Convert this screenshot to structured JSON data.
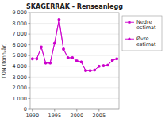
{
  "chart_data": {
    "type": "line",
    "title": "SKAGERRAK - Renseanlegg",
    "y_label": "TON (tonn/år)",
    "x": [
      1990,
      1991,
      1992,
      1993,
      1994,
      1995,
      1996,
      1997,
      1998,
      1999,
      2000,
      2001,
      2002,
      2003,
      2004,
      2005,
      2006,
      2007,
      2008,
      2009
    ],
    "series": [
      {
        "name": "Nedre\nestimat",
        "color": "#cc00cc",
        "marker": "square",
        "values": [
          4700,
          4700,
          5800,
          4300,
          4300,
          6150,
          8350,
          5600,
          4800,
          4800,
          4500,
          4400,
          3600,
          3600,
          3650,
          4000,
          4050,
          4100,
          4550,
          4700
        ]
      },
      {
        "name": "Øvre\nestimat",
        "color": "#cc00cc",
        "marker": "diamond",
        "values": [
          4700,
          4700,
          5800,
          4300,
          4300,
          6150,
          8350,
          5600,
          4800,
          4800,
          4500,
          4400,
          3600,
          3600,
          3650,
          4000,
          4050,
          4100,
          4550,
          4700
        ]
      }
    ],
    "xlim": [
      1989.5,
      2009.5
    ],
    "xticks": [
      1990,
      1995,
      2000,
      2005
    ],
    "ylim": [
      0,
      9000
    ],
    "yticks": [
      0,
      {
        "value": 1000,
        "label": "1 000"
      },
      {
        "value": 2000,
        "label": "2 000"
      },
      {
        "value": 3000,
        "label": "3 000"
      },
      {
        "value": 4000,
        "label": "4 000"
      },
      {
        "value": 5000,
        "label": "5 000"
      },
      {
        "value": 6000,
        "label": "6 000"
      },
      {
        "value": 7000,
        "label": "7 000"
      },
      {
        "value": 8000,
        "label": "8 000"
      },
      {
        "value": 9000,
        "label": "9 000"
      }
    ],
    "grid": true,
    "legend": "right"
  }
}
